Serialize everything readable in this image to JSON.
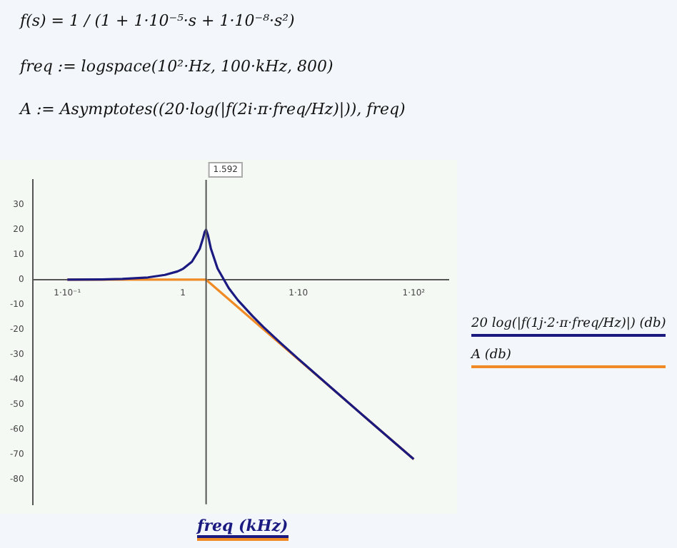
{
  "chart_data": {
    "type": "line",
    "annotations": [
      "f(s) = 1 / (1 + 1·10⁻⁵·s + 1·10⁻⁸·s²)",
      "freq := logspace(10²·Hz, 100·kHz, 800)",
      "A := Asymptotes((20·log(|f(2i·π·freq/Hz)|)), freq)"
    ],
    "xlabel": "freq (kHz)",
    "log": "x",
    "xlim": [
      0.05,
      200
    ],
    "xticks": [
      {
        "value": 0.1,
        "label": "1·10⁻¹"
      },
      1,
      {
        "value": 10,
        "label": "1·10"
      },
      {
        "value": 100,
        "label": "1·10²"
      }
    ],
    "ylim": [
      -90,
      40
    ],
    "yticks": [
      -80,
      -70,
      -60,
      -50,
      -40,
      -30,
      -20,
      -10,
      0,
      10,
      20,
      30
    ],
    "grid": false,
    "legend": "right",
    "ref_lines": [
      {
        "axis": "x",
        "value": 1.592,
        "label": "1.592",
        "color": "#555555"
      }
    ],
    "series": [
      {
        "name": "20 log(|f(1j·2·π·freq/Hz)|) (db)",
        "color": "#1a1a80",
        "x": [
          0.1,
          0.2,
          0.3,
          0.5,
          0.7,
          0.9,
          1.0,
          1.2,
          1.4,
          1.5,
          1.55,
          1.592,
          1.65,
          1.75,
          2,
          2.5,
          3,
          4,
          5,
          7,
          10,
          20,
          50,
          100
        ],
        "values": [
          0,
          0.1,
          0.3,
          0.9,
          1.9,
          3.3,
          4.3,
          7.2,
          12.3,
          16.7,
          19.2,
          20,
          17.9,
          12.5,
          4.5,
          -3.4,
          -8.2,
          -14.5,
          -19,
          -25.3,
          -31.7,
          -43.9,
          -59.9,
          -71.9
        ]
      },
      {
        "name": "A (db)",
        "color": "#f08a24",
        "x": [
          0.1,
          1.592,
          100
        ],
        "values": [
          0,
          0,
          -71.9
        ]
      }
    ]
  }
}
